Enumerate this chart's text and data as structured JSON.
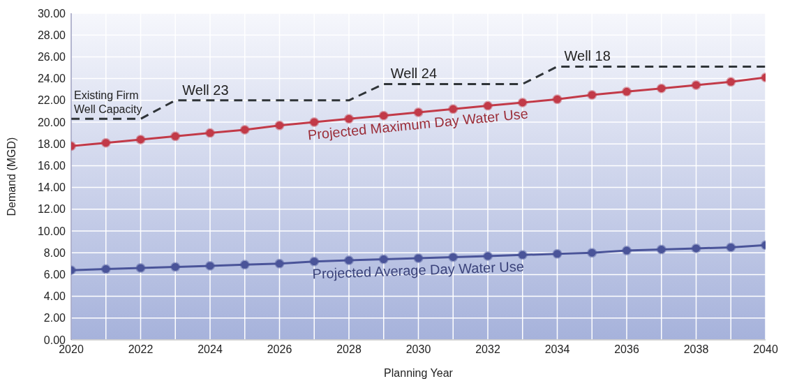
{
  "chart_data": {
    "type": "line",
    "xlabel": "Planning Year",
    "ylabel": "Demand (MGD)",
    "x": [
      2020,
      2021,
      2022,
      2023,
      2024,
      2025,
      2026,
      2027,
      2028,
      2029,
      2030,
      2031,
      2032,
      2033,
      2034,
      2035,
      2036,
      2037,
      2038,
      2039,
      2040
    ],
    "series": [
      {
        "name": "Projected Maximum Day Water Use",
        "color": "#c23a48",
        "marker": "circle",
        "values": [
          17.8,
          18.1,
          18.4,
          18.7,
          19.0,
          19.3,
          19.7,
          20.0,
          20.3,
          20.6,
          20.9,
          21.2,
          21.5,
          21.8,
          22.1,
          22.5,
          22.8,
          23.1,
          23.4,
          23.7,
          24.1
        ]
      },
      {
        "name": "Projected Average Day Water Use",
        "color": "#4a5499",
        "marker": "circle",
        "values": [
          6.4,
          6.5,
          6.6,
          6.7,
          6.8,
          6.9,
          7.0,
          7.2,
          7.3,
          7.4,
          7.5,
          7.6,
          7.7,
          7.8,
          7.9,
          8.0,
          8.2,
          8.3,
          8.4,
          8.5,
          8.7
        ]
      },
      {
        "color": "#2f3438",
        "marker": "none",
        "line_style": "dashed",
        "values": [
          20.3,
          20.3,
          20.3,
          22.0,
          22.0,
          22.0,
          22.0,
          22.0,
          22.0,
          23.5,
          23.5,
          23.5,
          23.5,
          23.5,
          25.1,
          25.1,
          25.1,
          25.1,
          25.1,
          25.1,
          25.1
        ]
      }
    ],
    "annotations": [
      {
        "text": "Existing Firm Well Capacity",
        "x": 2020,
        "y": 20.3
      },
      {
        "text": "Well 23",
        "x": 2023,
        "y": 22.0
      },
      {
        "text": "Well 24",
        "x": 2029,
        "y": 23.5
      },
      {
        "text": "Well 18",
        "x": 2034,
        "y": 25.1
      }
    ],
    "xlim": [
      2020,
      2040
    ],
    "xticks": [
      2020,
      {
        "value": 2021,
        "label": null
      },
      2022,
      {
        "value": 2023,
        "label": null
      },
      2024,
      {
        "value": 2025,
        "label": null
      },
      2026,
      {
        "value": 2027,
        "label": null
      },
      2028,
      {
        "value": 2029,
        "label": null
      },
      2030,
      {
        "value": 2031,
        "label": null
      },
      2032,
      {
        "value": 2033,
        "label": null
      },
      2034,
      {
        "value": 2035,
        "label": null
      },
      2036,
      {
        "value": 2037,
        "label": null
      },
      2038,
      {
        "value": 2039,
        "label": null
      },
      2040
    ],
    "ylim": [
      0,
      30
    ],
    "yticks": [
      {
        "value": 0,
        "label": "0.00"
      },
      {
        "value": 2,
        "label": "2.00"
      },
      {
        "value": 4,
        "label": "4.00"
      },
      {
        "value": 6,
        "label": "6.00"
      },
      {
        "value": 8,
        "label": "8.00"
      },
      {
        "value": 10,
        "label": "10.00"
      },
      {
        "value": 12,
        "label": "12.00"
      },
      {
        "value": 14,
        "label": "14.00"
      },
      {
        "value": 16,
        "label": "16.00"
      },
      {
        "value": 18,
        "label": "18.00"
      },
      {
        "value": 20,
        "label": "20.00"
      },
      {
        "value": 22,
        "label": "22.00"
      },
      {
        "value": 24,
        "label": "24.00"
      },
      {
        "value": 26,
        "label": "26.00"
      },
      {
        "value": 28,
        "label": "28.00"
      },
      {
        "value": 30,
        "label": "30.00"
      }
    ],
    "grid": true,
    "legend": false
  }
}
